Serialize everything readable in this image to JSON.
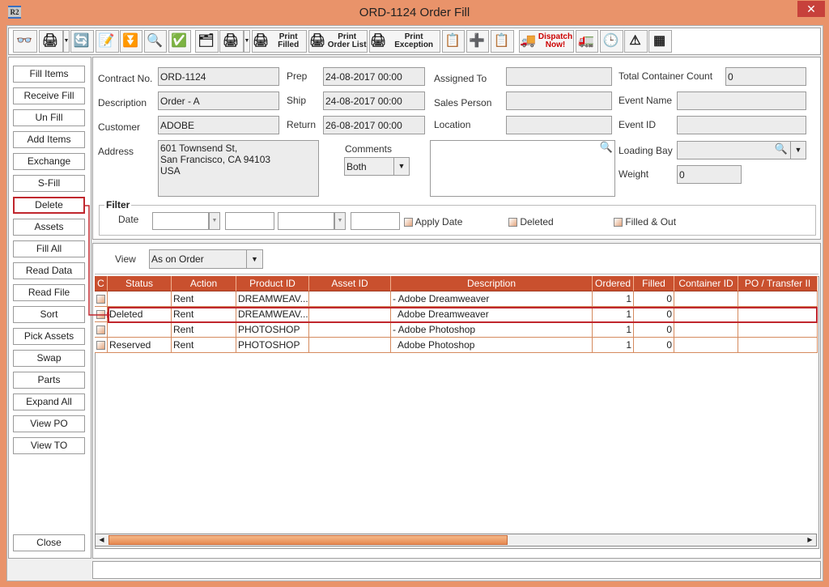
{
  "window": {
    "title": "ORD-1124 Order Fill",
    "app_icon": "R2",
    "close": "✕"
  },
  "toolbar": [
    {
      "name": "binoculars-icon",
      "label": "",
      "glyph": "👓"
    },
    {
      "name": "pick-printer-icon",
      "label": "",
      "glyph": "🖨"
    },
    {
      "name": "refresh-icon",
      "label": "",
      "glyph": "🔄"
    },
    {
      "name": "edit-notepad-icon",
      "label": "",
      "glyph": "📝"
    },
    {
      "name": "funnel-down-icon",
      "label": "",
      "glyph": "⏬"
    },
    {
      "name": "zoom-plus-minus-icon",
      "label": "",
      "glyph": "🔍"
    },
    {
      "name": "filter-check-icon",
      "label": "",
      "glyph": "✅"
    },
    {
      "name": "print-stack-icon",
      "label": "",
      "glyph": "🗂"
    },
    {
      "name": "print-multi-icon",
      "label": "",
      "glyph": "🖨"
    },
    {
      "name": "print-filled-icon",
      "label": "Print Filled",
      "glyph": "🖨"
    },
    {
      "name": "print-order-list-icon",
      "label": "Print Order List",
      "glyph": "🖨"
    },
    {
      "name": "print-exception-icon",
      "label": "Print Exception",
      "glyph": "🖨"
    },
    {
      "name": "container-list-icon",
      "label": "",
      "glyph": "📋"
    },
    {
      "name": "add-remove-icon",
      "label": "",
      "glyph": "➕"
    },
    {
      "name": "container-list-2-icon",
      "label": "",
      "glyph": "📋"
    },
    {
      "name": "dispatch-now-icon",
      "label": "Dispatch Now!",
      "glyph": "🚚"
    },
    {
      "name": "truck-document-icon",
      "label": "",
      "glyph": "🚛"
    },
    {
      "name": "schedule-clock-icon",
      "label": "",
      "glyph": "🕒"
    },
    {
      "name": "warning-document-icon",
      "label": "",
      "glyph": "⚠"
    },
    {
      "name": "color-grid-icon",
      "label": "",
      "glyph": "▦"
    }
  ],
  "sidebar": [
    "Fill Items",
    "Receive Fill",
    "Un Fill",
    "Add Items",
    "Exchange",
    "S-Fill",
    "Delete",
    "Assets",
    "Fill  All",
    "Read Data",
    "Read File",
    "Sort",
    "Pick Assets",
    "Swap",
    "Parts",
    "Expand All",
    "View PO",
    "View TO"
  ],
  "close_label": "Close",
  "form": {
    "contract_no_label": "Contract No.",
    "contract_no": "ORD-1124",
    "description_label": "Description",
    "description": "Order - A",
    "customer_label": "Customer",
    "customer": "ADOBE",
    "address_label": "Address",
    "address": [
      "601 Townsend St,",
      "San Francisco, CA 94103",
      "USA"
    ],
    "prep_label": "Prep",
    "prep": "24-08-2017 00:00",
    "ship_label": "Ship",
    "ship": "24-08-2017 00:00",
    "return_label": "Return",
    "return": "26-08-2017 00:00",
    "assigned_to_label": "Assigned To",
    "assigned_to": "",
    "sales_person_label": "Sales Person",
    "sales_person": "",
    "location_label": "Location",
    "location": "",
    "comments_label": "Comments",
    "comments_select": "Both",
    "total_container_label": "Total Container Count",
    "total_container": "0",
    "event_name_label": "Event Name",
    "event_id_label": "Event ID",
    "loading_bay_label": "Loading Bay",
    "weight_label": "Weight",
    "weight": "0"
  },
  "filter": {
    "title": "Filter",
    "date_label": "Date",
    "apply_date": "Apply Date",
    "deleted": "Deleted",
    "filled_out": "Filled & Out"
  },
  "view": {
    "label": "View",
    "value": "As on Order"
  },
  "table": {
    "columns": [
      "C",
      "Status",
      "Action",
      "Product ID",
      "Asset ID",
      "Description",
      "Ordered",
      "Filled",
      "Container ID",
      "PO / Transfer II"
    ],
    "rows": [
      [
        "",
        "",
        "Rent",
        "DREAMWEAV...",
        "",
        "- Adobe Dreamweaver",
        "1",
        "0",
        "",
        ""
      ],
      [
        "",
        "Deleted",
        "Rent",
        "DREAMWEAV...",
        "",
        "  Adobe Dreamweaver",
        "1",
        "0",
        "",
        ""
      ],
      [
        "",
        "",
        "Rent",
        "PHOTOSHOP",
        "",
        "- Adobe Photoshop",
        "1",
        "0",
        "",
        ""
      ],
      [
        "",
        "Reserved",
        "Rent",
        "PHOTOSHOP",
        "",
        "  Adobe Photoshop",
        "1",
        "0",
        "",
        ""
      ]
    ],
    "selected_row": 1
  },
  "colors": {
    "window_border": "#e9936a",
    "header": "#c9502e",
    "highlight": "#c0262d"
  }
}
